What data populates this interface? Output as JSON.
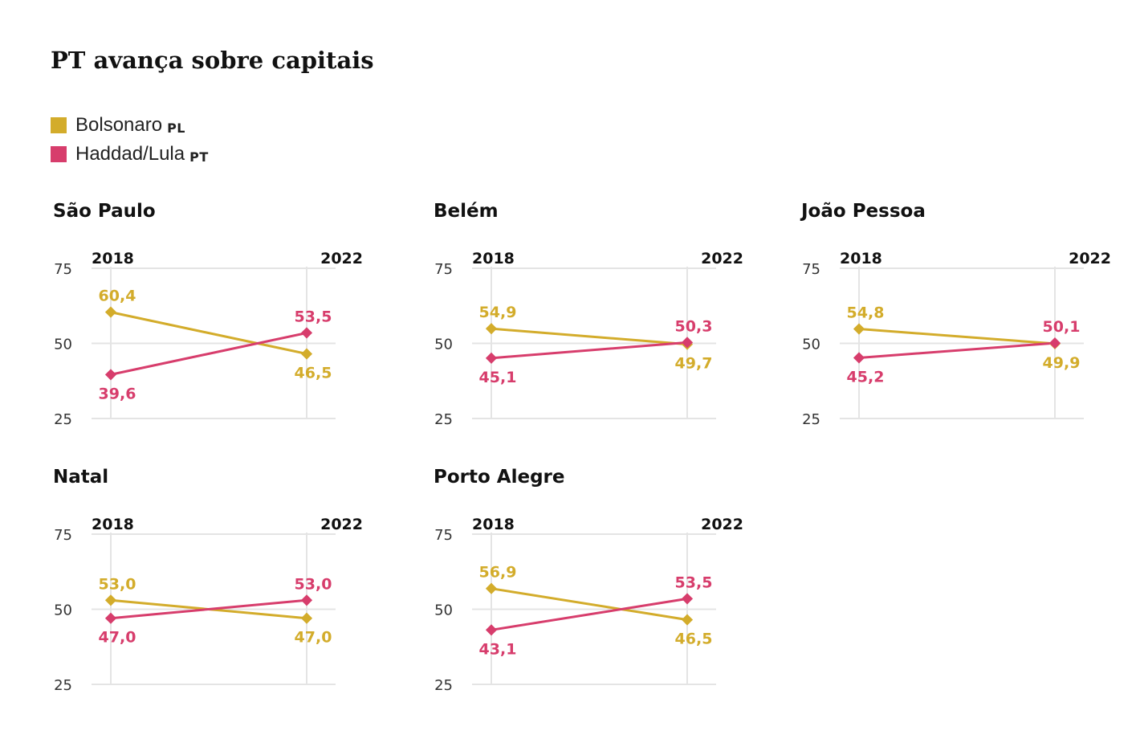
{
  "title": "PT avança sobre capitais",
  "legend": [
    {
      "label": "Bolsonaro",
      "party": "PL",
      "color": "#d3ac2b"
    },
    {
      "label": "Haddad/Lula",
      "party": "PT",
      "color": "#d73d6c"
    }
  ],
  "colors": {
    "bolsonaro": "#d3ac2b",
    "lula": "#d73d6c",
    "grid": "#e4e4e4"
  },
  "chart_data": [
    {
      "type": "line",
      "title": "São Paulo",
      "x": [
        "2018",
        "2022"
      ],
      "ylim": [
        25,
        75
      ],
      "yticks": [
        "75",
        "50",
        "25"
      ],
      "series": [
        {
          "name": "Bolsonaro PL",
          "values": [
            60.4,
            46.5
          ],
          "labels": [
            "60,4",
            "46,5"
          ]
        },
        {
          "name": "Haddad/Lula PT",
          "values": [
            39.6,
            53.5
          ],
          "labels": [
            "39,6",
            "53,5"
          ]
        }
      ]
    },
    {
      "type": "line",
      "title": "Belém",
      "x": [
        "2018",
        "2022"
      ],
      "ylim": [
        25,
        75
      ],
      "yticks": [
        "75",
        "50",
        "25"
      ],
      "series": [
        {
          "name": "Bolsonaro PL",
          "values": [
            54.9,
            49.7
          ],
          "labels": [
            "54,9",
            "49,7"
          ]
        },
        {
          "name": "Haddad/Lula PT",
          "values": [
            45.1,
            50.3
          ],
          "labels": [
            "45,1",
            "50,3"
          ]
        }
      ]
    },
    {
      "type": "line",
      "title": "João Pessoa",
      "x": [
        "2018",
        "2022"
      ],
      "ylim": [
        25,
        75
      ],
      "yticks": [
        "75",
        "50",
        "25"
      ],
      "series": [
        {
          "name": "Bolsonaro PL",
          "values": [
            54.8,
            49.9
          ],
          "labels": [
            "54,8",
            "49,9"
          ]
        },
        {
          "name": "Haddad/Lula PT",
          "values": [
            45.2,
            50.1
          ],
          "labels": [
            "45,2",
            "50,1"
          ]
        }
      ]
    },
    {
      "type": "line",
      "title": "Natal",
      "x": [
        "2018",
        "2022"
      ],
      "ylim": [
        25,
        75
      ],
      "yticks": [
        "75",
        "50",
        "25"
      ],
      "series": [
        {
          "name": "Bolsonaro PL",
          "values": [
            53.0,
            47.0
          ],
          "labels": [
            "53,0",
            "47,0"
          ]
        },
        {
          "name": "Haddad/Lula PT",
          "values": [
            47.0,
            53.0
          ],
          "labels": [
            "47,0",
            "53,0"
          ]
        }
      ]
    },
    {
      "type": "line",
      "title": "Porto Alegre",
      "x": [
        "2018",
        "2022"
      ],
      "ylim": [
        25,
        75
      ],
      "yticks": [
        "75",
        "50",
        "25"
      ],
      "series": [
        {
          "name": "Bolsonaro PL",
          "values": [
            56.9,
            46.5
          ],
          "labels": [
            "56,9",
            "46,5"
          ]
        },
        {
          "name": "Haddad/Lula PT",
          "values": [
            43.1,
            53.5
          ],
          "labels": [
            "43,1",
            "53,5"
          ]
        }
      ]
    }
  ]
}
